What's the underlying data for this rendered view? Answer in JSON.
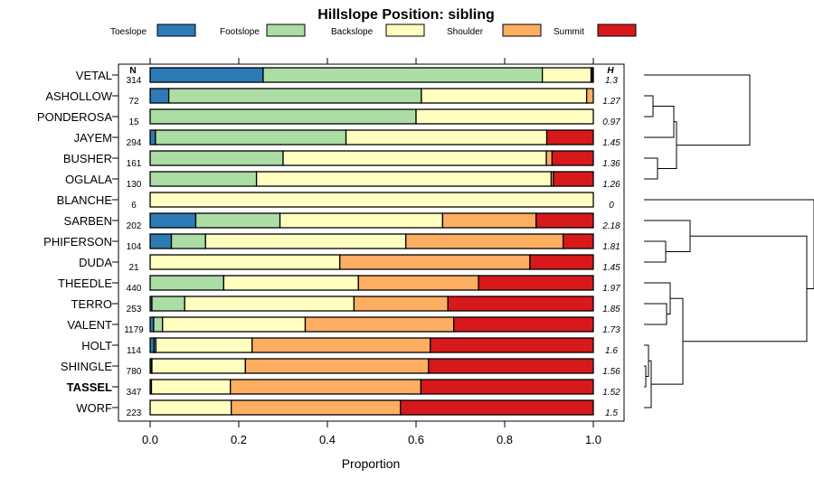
{
  "chart_data": {
    "type": "bar",
    "stacked": true,
    "orientation": "horizontal",
    "title": "Hillslope Position: sibling",
    "xlabel": "Proportion",
    "xlim": [
      0,
      1
    ],
    "x_ticks": [
      0,
      0.2,
      0.4,
      0.6,
      0.8,
      1
    ],
    "x_tick_labels": [
      "0.0",
      "0.2",
      "0.4",
      "0.6",
      "0.8",
      "1.0"
    ],
    "n_header": "N",
    "h_header": "H",
    "highlight": "TASSEL",
    "legend": [
      {
        "name": "Toeslope",
        "color": "#2c7bb6"
      },
      {
        "name": "Footslope",
        "color": "#abdda4"
      },
      {
        "name": "Backslope",
        "color": "#ffffbf"
      },
      {
        "name": "Shoulder",
        "color": "#fdae61"
      },
      {
        "name": "Summit",
        "color": "#d7191c"
      }
    ],
    "categories": [
      "VETAL",
      "ASHOLLOW",
      "PONDEROSA",
      "JAYEM",
      "BUSHER",
      "OGLALA",
      "BLANCHE",
      "SARBEN",
      "PHIFERSON",
      "DUDA",
      "THEEDLE",
      "TERRO",
      "VALENT",
      "HOLT",
      "SHINGLE",
      "TASSEL",
      "WORF"
    ],
    "n": [
      "314",
      "72",
      "15",
      "294",
      "161",
      "130",
      "6",
      "202",
      "104",
      "21",
      "440",
      "253",
      "1179",
      "114",
      "780",
      "347",
      "223"
    ],
    "h": [
      "1.3",
      "1.27",
      "0.97",
      "1.45",
      "1.36",
      "1.26",
      "0",
      "2.18",
      "1.81",
      "1.45",
      "1.97",
      "1.85",
      "1.73",
      "1.6",
      "1.56",
      "1.52",
      "1.5"
    ],
    "series": [
      {
        "name": "Toeslope",
        "values": [
          0.255,
          0.042,
          0,
          0.012,
          0,
          0,
          0,
          0.103,
          0.048,
          0,
          0,
          0.004,
          0.008,
          0.009,
          0.003,
          0.003,
          0
        ]
      },
      {
        "name": "Footslope",
        "values": [
          0.63,
          0.57,
          0.6,
          0.43,
          0.3,
          0.24,
          0,
          0.19,
          0.077,
          0,
          0.166,
          0.074,
          0.02,
          0.004,
          0.001,
          0,
          0
        ]
      },
      {
        "name": "Backslope",
        "values": [
          0.11,
          0.373,
          0.4,
          0.453,
          0.594,
          0.665,
          1.0,
          0.367,
          0.452,
          0.428,
          0.304,
          0.382,
          0.322,
          0.217,
          0.211,
          0.178,
          0.183
        ]
      },
      {
        "name": "Shoulder",
        "values": [
          0.003,
          0.015,
          0,
          0,
          0.013,
          0.005,
          0,
          0.211,
          0.355,
          0.429,
          0.271,
          0.212,
          0.335,
          0.402,
          0.413,
          0.43,
          0.382
        ]
      },
      {
        "name": "Summit",
        "values": [
          0.002,
          0,
          0,
          0.105,
          0.093,
          0.09,
          0,
          0.129,
          0.068,
          0.143,
          0.259,
          0.328,
          0.315,
          0.368,
          0.372,
          0.389,
          0.435
        ]
      }
    ]
  }
}
